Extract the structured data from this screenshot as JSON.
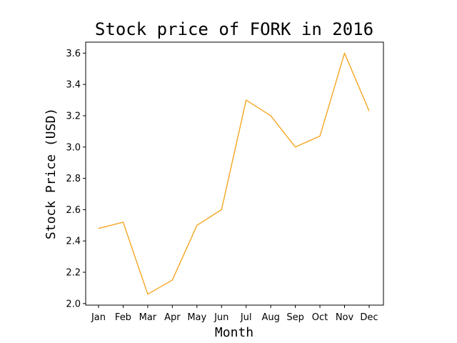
{
  "chart_data": {
    "type": "line",
    "title": "Stock price of FORK in 2016",
    "xlabel": "Month",
    "ylabel": "Stock Price (USD)",
    "categories": [
      "Jan",
      "Feb",
      "Mar",
      "Apr",
      "May",
      "Jun",
      "Jul",
      "Aug",
      "Sep",
      "Oct",
      "Nov",
      "Dec"
    ],
    "series": [
      {
        "values": [
          2.48,
          2.52,
          2.06,
          2.15,
          2.5,
          2.6,
          3.3,
          3.2,
          3.0,
          3.07,
          3.6,
          3.23
        ],
        "color": "#f5a623"
      }
    ],
    "yticks": [
      "2.0",
      "2.2",
      "2.4",
      "2.6",
      "2.8",
      "3.0",
      "3.2",
      "3.4",
      "3.6"
    ],
    "ylim": [
      1.99,
      3.67
    ],
    "grid": false,
    "legend": "none"
  }
}
